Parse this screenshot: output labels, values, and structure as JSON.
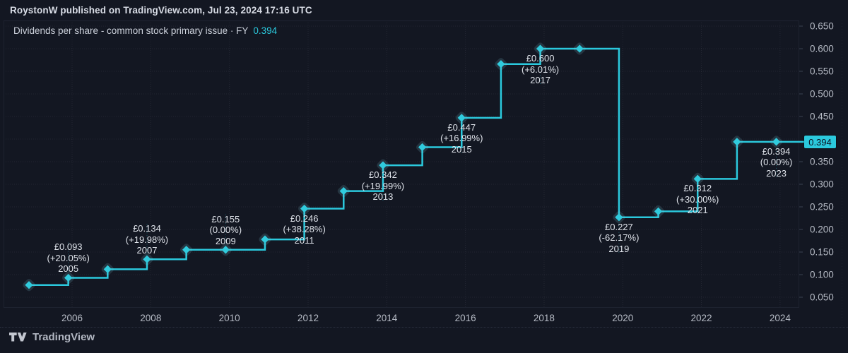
{
  "header": {
    "attribution": "RoystonW published on TradingView.com, Jul 23, 2024 17:16 UTC"
  },
  "title": {
    "text": "Dividends per share - common stock primary issue · FY",
    "value": "0.394"
  },
  "footer": {
    "brand": "TradingView"
  },
  "colors": {
    "background": "#131722",
    "accent": "#2bc9dd",
    "marker_halo": "rgba(130,200,220,0.17)",
    "label_text": "#dfe3ea",
    "axis_text": "#b6bbc5",
    "badge_background": "#2bc9dd",
    "badge_text": "#0d1220"
  },
  "chart_data": {
    "type": "line",
    "line_style": "step",
    "title": "Dividends per share - common stock primary issue",
    "period": "FY",
    "currency_symbol": "£",
    "last_value": 0.394,
    "last_value_badge": "0.394",
    "grid": "dotted",
    "legend_position": "top-left",
    "ylim": [
      0.03,
      0.665
    ],
    "y_ticks": [
      "0.650",
      "0.600",
      "0.550",
      "0.500",
      "0.450",
      "0.350",
      "0.300",
      "0.250",
      "0.200",
      "0.150",
      "0.100",
      "0.050"
    ],
    "y_gridline_values": [
      0.65,
      0.6,
      0.55,
      0.5,
      0.45,
      0.4,
      0.35,
      0.3,
      0.25,
      0.2,
      0.15,
      0.1,
      0.05
    ],
    "x_ticks": [
      "2006",
      "2008",
      "2010",
      "2012",
      "2014",
      "2016",
      "2018",
      "2020",
      "2022",
      "2024"
    ],
    "points": [
      {
        "fy": "2004",
        "value": 0.077,
        "estimated": true
      },
      {
        "fy": "2005",
        "value": 0.093,
        "label": {
          "price": "£0.093",
          "change": "(+20.05%)",
          "year": "2005",
          "position": "above"
        }
      },
      {
        "fy": "2006",
        "value": 0.112,
        "estimated": true
      },
      {
        "fy": "2007",
        "value": 0.134,
        "label": {
          "price": "£0.134",
          "change": "(+19.98%)",
          "year": "2007",
          "position": "above"
        }
      },
      {
        "fy": "2008",
        "value": 0.155,
        "estimated": true
      },
      {
        "fy": "2009",
        "value": 0.155,
        "label": {
          "price": "£0.155",
          "change": "(0.00%)",
          "year": "2009",
          "position": "above"
        }
      },
      {
        "fy": "2010",
        "value": 0.178,
        "estimated": true
      },
      {
        "fy": "2011",
        "value": 0.246,
        "label": {
          "price": "£0.246",
          "change": "(+38.28%)",
          "year": "2011",
          "position": "below"
        }
      },
      {
        "fy": "2012",
        "value": 0.285,
        "estimated": true
      },
      {
        "fy": "2013",
        "value": 0.342,
        "label": {
          "price": "£0.342",
          "change": "(+19.99%)",
          "year": "2013",
          "position": "below"
        }
      },
      {
        "fy": "2014",
        "value": 0.382,
        "estimated": true
      },
      {
        "fy": "2015",
        "value": 0.447,
        "label": {
          "price": "£0.447",
          "change": "(+16.99%)",
          "year": "2015",
          "position": "below"
        }
      },
      {
        "fy": "2016",
        "value": 0.566,
        "estimated": true
      },
      {
        "fy": "2017",
        "value": 0.6,
        "label": {
          "price": "£0.600",
          "change": "(+6.01%)",
          "year": "2017",
          "position": "below"
        }
      },
      {
        "fy": "2018",
        "value": 0.6,
        "estimated": true
      },
      {
        "fy": "2019",
        "value": 0.227,
        "label": {
          "price": "£0.227",
          "change": "(-62.17%)",
          "year": "2019",
          "position": "below"
        }
      },
      {
        "fy": "2020",
        "value": 0.24,
        "estimated": true
      },
      {
        "fy": "2021",
        "value": 0.312,
        "label": {
          "price": "£0.312",
          "change": "(+30.00%)",
          "year": "2021",
          "position": "below"
        }
      },
      {
        "fy": "2022",
        "value": 0.394,
        "estimated": true
      },
      {
        "fy": "2023",
        "value": 0.394,
        "label": {
          "price": "£0.394",
          "change": "(0.00%)",
          "year": "2023",
          "position": "below"
        }
      }
    ]
  }
}
